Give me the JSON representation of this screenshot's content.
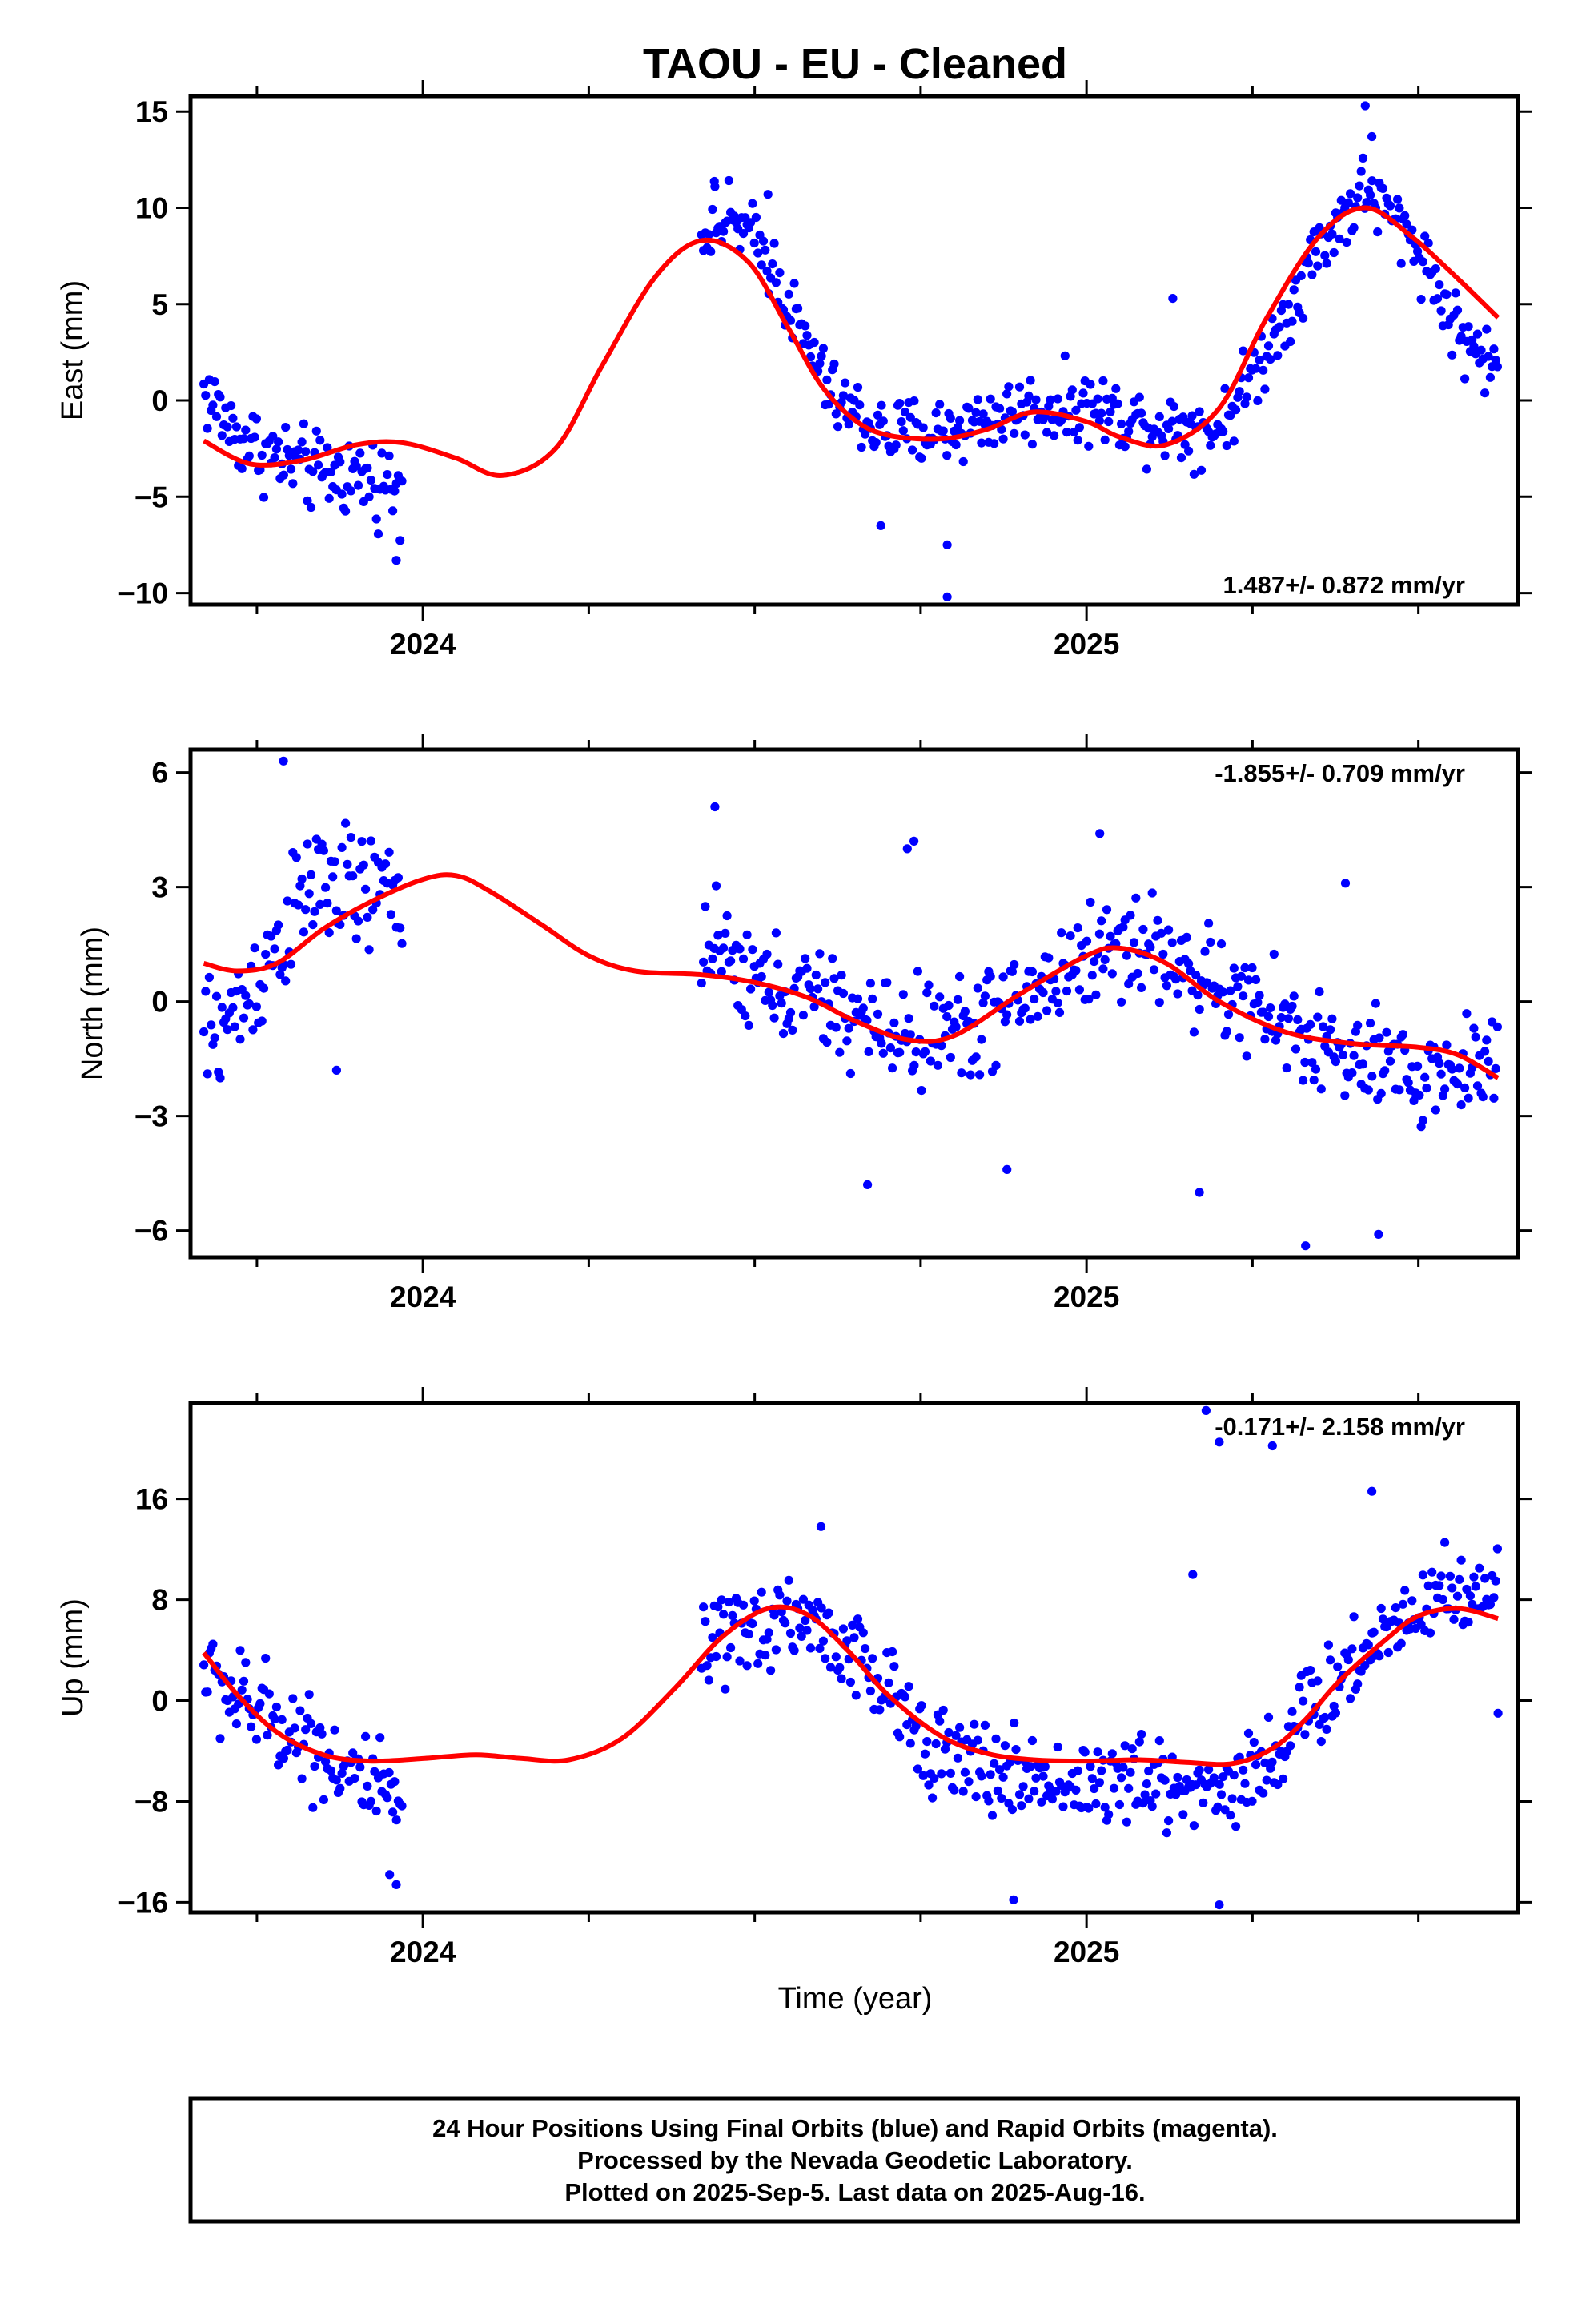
{
  "chart_data": {
    "type": "scatter",
    "title": "TAOU  - EU - Cleaned",
    "xlabel": "Time (year)",
    "xlim": [
      2023.65,
      2025.65
    ],
    "x_ticks": [
      2024,
      2025
    ],
    "colors": {
      "points": "#0000ff",
      "fit": "#ff0000",
      "frame": "#000000"
    },
    "grid": false,
    "panels": [
      {
        "id": "east",
        "ylabel": "East (mm)",
        "ylim": [
          -10.6,
          15.8
        ],
        "y_ticks": [
          -10,
          -5,
          0,
          5,
          10,
          15
        ],
        "rate_text": "1.487+/- 0.872 mm/yr",
        "rate_position": "bottom-right",
        "fit": {
          "x": [
            2023.67,
            2023.74,
            2023.82,
            2023.9,
            2023.97,
            2024.05,
            2024.12,
            2024.2,
            2024.27,
            2024.35,
            2024.42,
            2024.49,
            2024.55,
            2024.6,
            2024.65,
            2024.7,
            2024.78,
            2024.85,
            2024.92,
            2025.0,
            2025.05,
            2025.12,
            2025.2,
            2025.27,
            2025.35,
            2025.42,
            2025.49,
            2025.56,
            2025.62
          ],
          "y": [
            -2.1,
            -3.3,
            -3.1,
            -2.3,
            -2.2,
            -3.0,
            -3.9,
            -2.5,
            1.8,
            6.4,
            8.3,
            7.2,
            3.8,
            0.8,
            -1.0,
            -1.8,
            -2.0,
            -1.5,
            -0.6,
            -1.1,
            -1.9,
            -2.3,
            -0.4,
            4.2,
            8.5,
            10.0,
            8.5,
            6.3,
            4.3
          ]
        },
        "points": {
          "segments": [
            {
              "x_start": 2023.67,
              "x_end": 2023.97,
              "anchor_x": [
                2023.67,
                2023.72,
                2023.78,
                2023.84,
                2023.9,
                2023.97
              ],
              "anchor_y": [
                0.5,
                -1.8,
                -3.0,
                -3.8,
                -3.9,
                -4.5
              ],
              "spread": 1.8
            },
            {
              "x_start": 2024.42,
              "x_end": 2025.62,
              "anchor_x": [
                2024.42,
                2024.47,
                2024.52,
                2024.57,
                2024.62,
                2024.7,
                2024.8,
                2024.9,
                2025.0,
                2025.1,
                2025.2,
                2025.27,
                2025.35,
                2025.42,
                2025.5,
                2025.56,
                2025.62
              ],
              "anchor_y": [
                9.0,
                9.3,
                7.5,
                3.5,
                0.0,
                -1.8,
                -1.5,
                -0.5,
                -0.3,
                -1.2,
                -1.5,
                2.5,
                8.0,
                11.0,
                8.0,
                3.5,
                1.5
              ],
              "spread": 1.6
            }
          ],
          "outliers": [
            [
              2023.96,
              -8.3
            ],
            [
              2024.69,
              -6.5
            ],
            [
              2024.79,
              -7.5
            ],
            [
              2024.79,
              -10.2
            ],
            [
              2025.13,
              5.3
            ],
            [
              2025.42,
              15.3
            ],
            [
              2025.43,
              13.7
            ],
            [
              2024.44,
              11.1
            ],
            [
              2024.52,
              10.7
            ]
          ]
        }
      },
      {
        "id": "north",
        "ylabel": "North (mm)",
        "ylim": [
          -6.7,
          6.6
        ],
        "y_ticks": [
          -6,
          -3,
          0,
          3,
          6
        ],
        "rate_text": "-1.855+/- 0.709 mm/yr",
        "rate_position": "top-right",
        "fit": {
          "x": [
            2023.67,
            2023.72,
            2023.78,
            2023.85,
            2023.92,
            2024.0,
            2024.05,
            2024.1,
            2024.18,
            2024.25,
            2024.32,
            2024.42,
            2024.5,
            2024.58,
            2024.65,
            2024.73,
            2024.8,
            2024.9,
            2025.0,
            2025.05,
            2025.12,
            2025.2,
            2025.3,
            2025.4,
            2025.5,
            2025.56,
            2025.62
          ],
          "y": [
            1.0,
            0.8,
            1.0,
            1.9,
            2.6,
            3.2,
            3.3,
            2.9,
            2.0,
            1.2,
            0.8,
            0.7,
            0.5,
            0.1,
            -0.5,
            -1.0,
            -0.9,
            0.2,
            1.2,
            1.4,
            1.0,
            0.0,
            -0.8,
            -1.1,
            -1.2,
            -1.4,
            -2.0
          ]
        },
        "points": {
          "segments": [
            {
              "x_start": 2023.67,
              "x_end": 2023.97,
              "anchor_x": [
                2023.67,
                2023.72,
                2023.78,
                2023.84,
                2023.9,
                2023.97
              ],
              "anchor_y": [
                -1.0,
                -0.3,
                1.5,
                3.2,
                2.8,
                2.9
              ],
              "spread": 1.4
            },
            {
              "x_start": 2024.42,
              "x_end": 2025.62,
              "anchor_x": [
                2024.42,
                2024.5,
                2024.6,
                2024.7,
                2024.8,
                2024.9,
                2025.0,
                2025.08,
                2025.18,
                2025.3,
                2025.4,
                2025.5,
                2025.62
              ],
              "anchor_y": [
                1.5,
                0.5,
                0.0,
                -0.8,
                -0.8,
                0.0,
                1.2,
                1.6,
                0.5,
                -0.6,
                -1.6,
                -2.0,
                -1.5
              ],
              "spread": 1.2
            }
          ],
          "outliers": [
            [
              2023.79,
              6.3
            ],
            [
              2024.44,
              5.1
            ],
            [
              2024.73,
              4.0
            ],
            [
              2024.74,
              4.2
            ],
            [
              2025.02,
              4.4
            ],
            [
              2024.67,
              -4.8
            ],
            [
              2024.88,
              -4.4
            ],
            [
              2025.17,
              -5.0
            ],
            [
              2025.33,
              -6.4
            ],
            [
              2025.44,
              -6.1
            ],
            [
              2025.39,
              3.1
            ],
            [
              2023.87,
              -1.8
            ]
          ]
        }
      },
      {
        "id": "up",
        "ylabel": "Up (mm)",
        "ylim": [
          -16.8,
          23.6
        ],
        "y_ticks": [
          -16,
          -8,
          0,
          8,
          16
        ],
        "rate_text": "-0.171+/- 2.158 mm/yr",
        "rate_position": "top-right",
        "fit": {
          "x": [
            2023.67,
            2023.72,
            2023.78,
            2023.85,
            2023.92,
            2024.0,
            2024.08,
            2024.15,
            2024.22,
            2024.3,
            2024.38,
            2024.45,
            2024.52,
            2024.58,
            2024.64,
            2024.7,
            2024.78,
            2024.85,
            2024.92,
            2025.0,
            2025.08,
            2025.15,
            2025.22,
            2025.28,
            2025.33,
            2025.38,
            2025.45,
            2025.5,
            2025.56,
            2025.62
          ],
          "y": [
            3.8,
            0.5,
            -2.5,
            -4.3,
            -4.8,
            -4.6,
            -4.3,
            -4.6,
            -4.7,
            -3.0,
            1.0,
            5.0,
            7.3,
            6.8,
            4.0,
            0.5,
            -2.8,
            -4.2,
            -4.7,
            -4.8,
            -4.7,
            -4.9,
            -5.0,
            -3.8,
            -1.5,
            1.5,
            4.8,
            6.7,
            7.3,
            6.5
          ]
        },
        "points": {
          "segments": [
            {
              "x_start": 2023.67,
              "x_end": 2023.97,
              "anchor_x": [
                2023.67,
                2023.72,
                2023.78,
                2023.84,
                2023.9,
                2023.97
              ],
              "anchor_y": [
                2.5,
                0.0,
                -1.5,
                -3.5,
                -6.0,
                -9.0
              ],
              "spread": 3.5
            },
            {
              "x_start": 2024.42,
              "x_end": 2025.62,
              "anchor_x": [
                2024.42,
                2024.48,
                2024.55,
                2024.62,
                2024.7,
                2024.8,
                2024.9,
                2025.0,
                2025.1,
                2025.2,
                2025.27,
                2025.35,
                2025.42,
                2025.5,
                2025.56,
                2025.62
              ],
              "anchor_y": [
                3.5,
                5.0,
                7.0,
                5.0,
                0.5,
                -5.0,
                -6.0,
                -6.5,
                -6.5,
                -7.0,
                -5.0,
                0.0,
                4.0,
                8.0,
                9.0,
                8.0
              ],
              "spread": 3.2
            }
          ],
          "outliers": [
            [
              2025.18,
              23.0
            ],
            [
              2025.2,
              20.5
            ],
            [
              2025.28,
              20.2
            ],
            [
              2025.43,
              16.6
            ],
            [
              2024.89,
              -15.8
            ],
            [
              2025.2,
              -16.2
            ],
            [
              2025.62,
              -1.0
            ],
            [
              2023.96,
              -14.6
            ],
            [
              2023.95,
              -13.8
            ],
            [
              2024.6,
              13.8
            ],
            [
              2025.16,
              10.0
            ]
          ]
        }
      }
    ]
  },
  "footer": {
    "line1": "24 Hour Positions Using Final Orbits (blue) and Rapid Orbits (magenta).",
    "line2": "Processed by the Nevada Geodetic Laboratory.",
    "line3": "Plotted on 2025-Sep-5. Last data on 2025-Aug-16."
  }
}
